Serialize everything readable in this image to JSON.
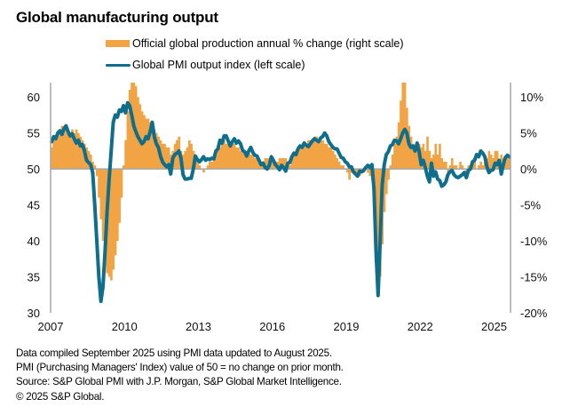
{
  "chart_data": {
    "type": "bar+line",
    "title": "Global manufacturing output",
    "legend": [
      {
        "label": "Official global production annual % change (right scale)",
        "kind": "bar",
        "color": "#F2A444"
      },
      {
        "label": "Global PMI output index (left scale)",
        "kind": "line",
        "color": "#0E6E8C"
      }
    ],
    "legend_placement": "top-center",
    "grid": false,
    "x_start": "2007-01",
    "x_end": "2025-08",
    "frequency": "monthly",
    "x_tick_labels": [
      "2007",
      "2010",
      "2013",
      "2016",
      "2019",
      "2022",
      "2025"
    ],
    "x_tick_years": [
      2007,
      2010,
      2013,
      2016,
      2019,
      2022,
      2025
    ],
    "left_axis": {
      "label": "Global PMI output index",
      "ylim": [
        30,
        62
      ],
      "ticks": [
        30,
        35,
        40,
        45,
        50,
        55,
        60
      ],
      "tick_labels": [
        "30",
        "35",
        "40",
        "45",
        "50",
        "55",
        "60"
      ]
    },
    "right_axis": {
      "label": "Official global production annual % change",
      "ylim": [
        -20,
        12
      ],
      "ticks": [
        -20,
        -15,
        -10,
        -5,
        0,
        5,
        10
      ],
      "tick_labels": [
        "-20%",
        "-15%",
        "-10%",
        "-5%",
        "0%",
        "5%",
        "10%"
      ]
    },
    "series": [
      {
        "name": "Official global production annual % change (right scale)",
        "type": "bar",
        "axis": "right",
        "color": "#F2A444",
        "values": [
          3.0,
          4.0,
          4.5,
          5.0,
          5.5,
          6.0,
          5.5,
          6.0,
          5.5,
          5.0,
          5.5,
          5.0,
          5.5,
          5.0,
          4.5,
          4.0,
          3.5,
          3.0,
          2.5,
          2.0,
          1.0,
          0.5,
          -1.0,
          -4.0,
          -7.0,
          -10.0,
          -12.0,
          -14.5,
          -15.0,
          -15.5,
          -14.0,
          -12.0,
          -10.0,
          -7.5,
          -4.0,
          0.5,
          4.0,
          8.0,
          11.0,
          12.0,
          12.0,
          11.5,
          10.0,
          9.0,
          8.0,
          7.5,
          7.0,
          7.0,
          6.5,
          6.0,
          5.5,
          5.0,
          4.5,
          4.0,
          3.5,
          3.5,
          3.0,
          3.0,
          2.0,
          2.5,
          3.5,
          4.0,
          4.5,
          2.5,
          2.0,
          2.5,
          3.0,
          4.0,
          3.5,
          2.5,
          1.5,
          1.0,
          0.5,
          0.0,
          -0.5,
          0.0,
          0.5,
          1.0,
          1.0,
          1.5,
          2.0,
          2.5,
          3.0,
          3.5,
          4.0,
          3.5,
          4.0,
          3.5,
          4.0,
          3.5,
          3.0,
          3.0,
          2.5,
          2.5,
          2.5,
          2.5,
          2.5,
          2.0,
          2.0,
          1.5,
          1.5,
          1.5,
          1.0,
          1.0,
          1.5,
          1.5,
          1.5,
          1.0,
          1.0,
          1.0,
          1.0,
          1.5,
          1.5,
          1.5,
          1.5,
          1.0,
          0.5,
          1.5,
          2.0,
          2.5,
          3.0,
          3.0,
          3.0,
          3.5,
          3.5,
          4.0,
          4.0,
          4.0,
          4.5,
          4.5,
          4.0,
          4.0,
          4.0,
          3.5,
          3.5,
          3.0,
          3.0,
          2.5,
          2.0,
          1.5,
          1.0,
          0.5,
          0.5,
          0.0,
          -0.5,
          -1.5,
          -0.5,
          0.0,
          -0.5,
          -1.0,
          -1.0,
          -0.5,
          -0.5,
          0.0,
          -0.5,
          -1.0,
          -1.5,
          -4.5,
          -9.0,
          -17.5,
          -15.0,
          -10.5,
          -6.0,
          -3.5,
          -1.5,
          0.5,
          2.0,
          3.5,
          4.5,
          6.5,
          9.5,
          14.0,
          12.0,
          8.5,
          6.0,
          4.5,
          3.5,
          3.0,
          3.5,
          3.5,
          3.0,
          3.5,
          2.5,
          4.5,
          2.5,
          1.5,
          2.0,
          3.5,
          2.0,
          3.5,
          1.5,
          1.0,
          1.0,
          -0.5,
          0.5,
          1.5,
          0.5,
          0.5,
          0.0,
          1.0,
          0.5,
          0.0,
          -0.5,
          0.5,
          0.5,
          1.0,
          1.0,
          0.0,
          0.5,
          1.0,
          0.5,
          1.0,
          1.5,
          2.5,
          2.0,
          1.5,
          2.5,
          2.5,
          1.0,
          2.0,
          1.5,
          1.0,
          2.0,
          1.5
        ]
      },
      {
        "name": "Global PMI output index (left scale)",
        "type": "line",
        "axis": "left",
        "color": "#0E6E8C",
        "values": [
          53.8,
          54.5,
          54.2,
          55.0,
          55.3,
          54.8,
          55.6,
          56.0,
          55.2,
          54.6,
          54.9,
          54.2,
          53.6,
          54.0,
          53.2,
          53.4,
          52.5,
          51.2,
          50.9,
          50.6,
          49.5,
          45.0,
          40.0,
          35.0,
          31.6,
          33.6,
          38.5,
          44.0,
          48.5,
          52.5,
          56.5,
          57.5,
          57.2,
          58.2,
          58.0,
          58.8,
          57.8,
          59.2,
          58.8,
          57.5,
          56.0,
          55.2,
          54.5,
          54.0,
          53.5,
          53.8,
          54.5,
          54.2,
          55.2,
          56.5,
          54.5,
          53.5,
          53.0,
          51.8,
          51.0,
          50.6,
          50.3,
          50.6,
          49.3,
          51.5,
          52.0,
          52.2,
          52.5,
          51.5,
          49.2,
          48.6,
          48.6,
          48.7,
          48.7,
          50.0,
          51.8,
          51.3,
          51.0,
          51.3,
          51.7,
          51.2,
          51.4,
          51.3,
          51.5,
          51.4,
          52.5,
          52.8,
          54.0,
          53.6,
          54.6,
          54.6,
          53.9,
          53.2,
          53.8,
          54.2,
          53.6,
          53.9,
          53.5,
          52.6,
          52.4,
          51.8,
          52.5,
          53.0,
          52.3,
          51.9,
          51.8,
          51.2,
          50.6,
          50.8,
          50.2,
          50.0,
          50.5,
          51.7,
          51.2,
          50.6,
          50.3,
          49.9,
          50.5,
          50.2,
          49.7,
          50.8,
          50.9,
          51.7,
          52.2,
          52.0,
          52.8,
          53.2,
          53.0,
          53.6,
          53.3,
          53.1,
          53.5,
          53.9,
          54.2,
          54.0,
          53.8,
          54.3,
          54.5,
          55.0,
          54.6,
          53.8,
          53.4,
          53.0,
          52.8,
          52.8,
          52.2,
          51.6,
          51.5,
          51.0,
          50.8,
          50.3,
          50.3,
          49.6,
          49.3,
          49.0,
          49.7,
          49.6,
          49.8,
          50.2,
          50.5,
          50.2,
          50.6,
          47.2,
          38.5,
          32.4,
          40.0,
          47.8,
          50.6,
          52.0,
          52.4,
          53.2,
          53.4,
          54.0,
          53.9,
          53.5,
          54.2,
          55.0,
          55.5,
          55.0,
          53.5,
          53.0,
          53.2,
          52.5,
          53.6,
          52.4,
          50.6,
          51.2,
          50.2,
          49.0,
          48.2,
          50.8,
          49.0,
          49.6,
          48.6,
          48.4,
          47.6,
          47.8,
          48.2,
          49.2,
          49.6,
          49.8,
          49.2,
          48.9,
          48.8,
          49.0,
          49.2,
          49.5,
          48.8,
          49.8,
          50.0,
          51.0,
          51.2,
          52.0,
          51.7,
          52.5,
          52.2,
          51.7,
          50.3,
          49.5,
          49.8,
          49.9,
          50.8,
          50.6,
          51.2,
          49.3,
          50.6,
          51.6,
          51.9,
          51.7
        ]
      }
    ]
  },
  "footer": {
    "lines": [
      "Data compiled September 2025 using PMI data updated to August 2025.",
      "PMI (Purchasing Managers' Index) value of 50 = no change on prior month.",
      "Source: S&P Global PMI with J.P. Morgan, S&P Global Market Intelligence.",
      "© 2025 S&P Global."
    ]
  }
}
